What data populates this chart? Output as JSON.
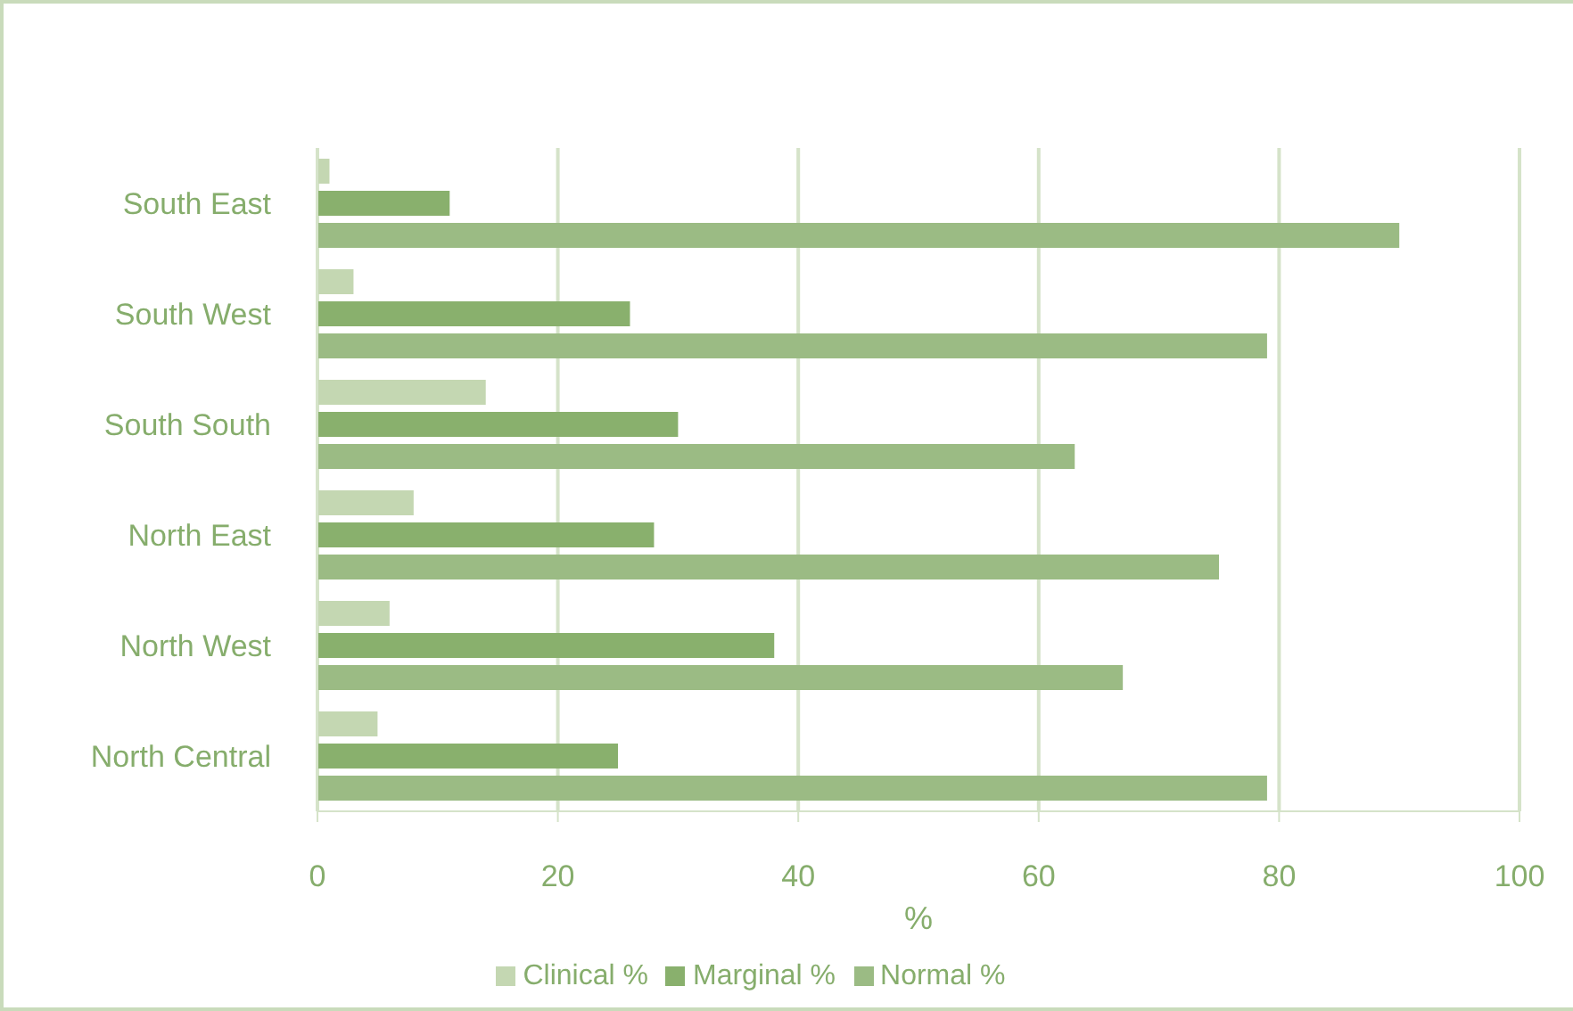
{
  "chart_data": {
    "type": "bar",
    "orientation": "horizontal",
    "categories": [
      "South East",
      "South West",
      "South South",
      "North East",
      "North West",
      "North Central"
    ],
    "series": [
      {
        "name": "Clinical %",
        "color": "#c4d7b2",
        "values": [
          1,
          3,
          14,
          8,
          6,
          5
        ]
      },
      {
        "name": "Marginal %",
        "color": "#89b06d",
        "values": [
          11,
          26,
          30,
          28,
          38,
          25
        ]
      },
      {
        "name": "Normal %",
        "color": "#9bbb84",
        "values": [
          90,
          79,
          63,
          75,
          67,
          79
        ]
      }
    ],
    "xlabel": "%",
    "xlim": [
      0,
      100
    ],
    "xticks": [
      0,
      20,
      40,
      60,
      80,
      100
    ],
    "grid": "x",
    "legend": "bottom"
  }
}
